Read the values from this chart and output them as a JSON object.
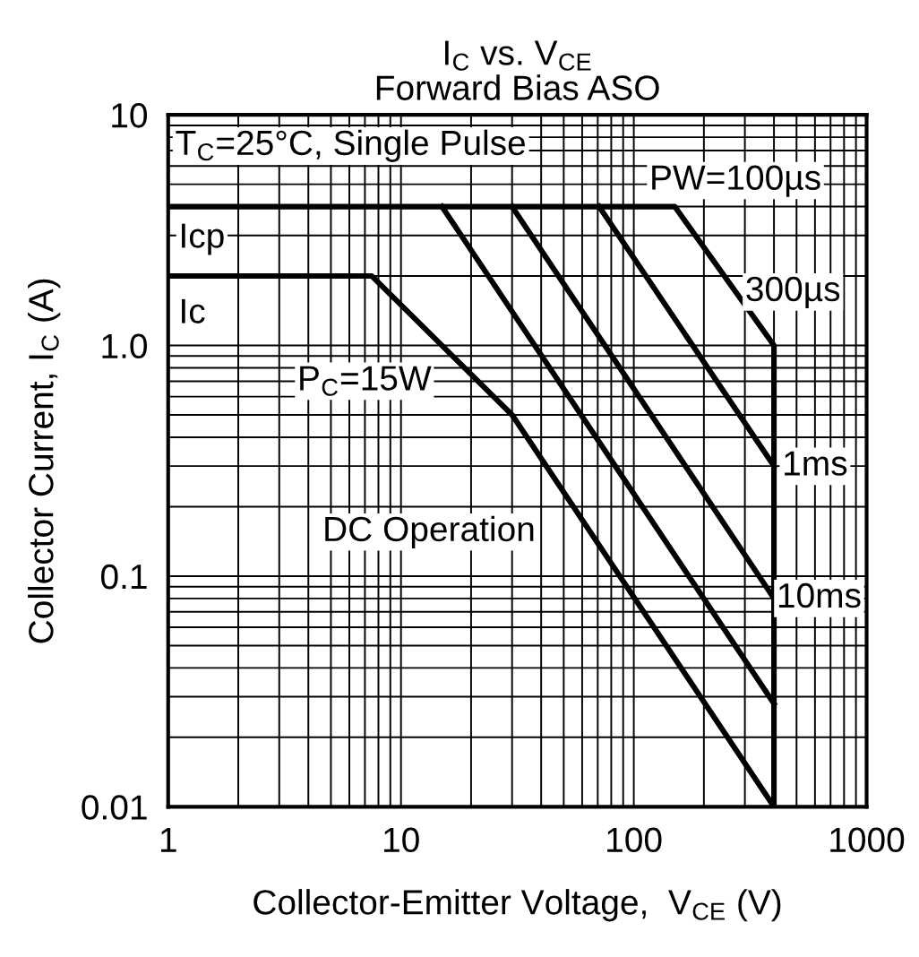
{
  "chart_data": {
    "type": "line",
    "title": "I$_{C}$ vs. V$_{CE}$\nForward Bias ASO",
    "xlabel": "Collector-Emitter Voltage,  V$_{CE}$ (V)",
    "ylabel": "Collector Current, I$_{C}$ (A)",
    "log": "xy",
    "xlim": [
      1,
      1000
    ],
    "ylim": [
      0.01,
      10
    ],
    "xticks": [
      1,
      10,
      100,
      1000
    ],
    "yticks": [
      0.01,
      0.1,
      {
        "value": 1,
        "label": "1.0"
      },
      10
    ],
    "grid": true,
    "marker": "none",
    "line_style": "solid",
    "series": [
      {
        "color": "#000000",
        "x": [
          1,
          150,
          400,
          400
        ],
        "values": [
          4,
          4,
          1.0,
          0.01
        ]
      },
      {
        "color": "#000000",
        "x": [
          71,
          400
        ],
        "values": [
          4,
          0.3
        ]
      },
      {
        "color": "#000000",
        "x": [
          30,
          400
        ],
        "values": [
          4,
          0.08
        ]
      },
      {
        "color": "#000000",
        "x": [
          15,
          400
        ],
        "values": [
          4,
          0.028
        ]
      },
      {
        "color": "#000000",
        "x": [
          1,
          7.5,
          30,
          400
        ],
        "values": [
          2,
          2,
          0.5,
          0.01
        ]
      }
    ],
    "annotations": [
      "T$_{C}$=25°C, Single Pulse",
      "PW=100µs",
      "300µs",
      "1ms",
      "10ms",
      "DC Operation",
      "P$_{C}$=15W",
      "Icp",
      "Ic"
    ]
  }
}
